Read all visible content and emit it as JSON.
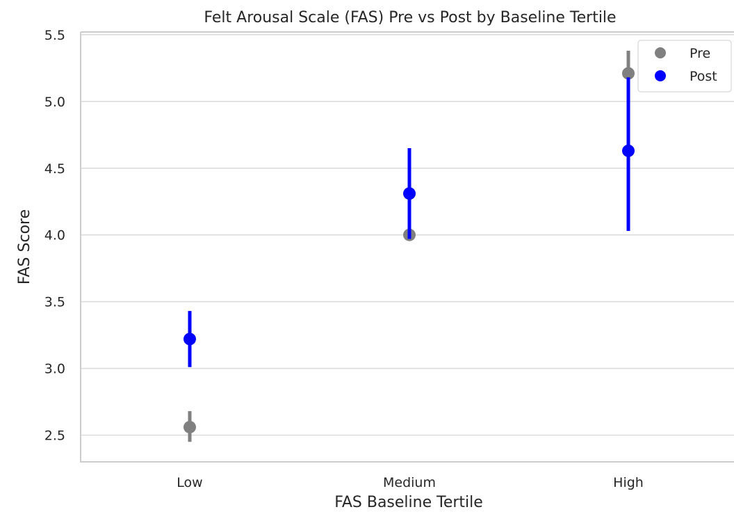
{
  "chart_data": {
    "type": "scatter",
    "title": "Felt Arousal Scale (FAS) Pre vs Post by Baseline Tertile",
    "xlabel": "FAS Baseline Tertile",
    "ylabel": "FAS Score",
    "categories": [
      "Low",
      "Medium",
      "High"
    ],
    "ylim": [
      2.3,
      5.52
    ],
    "yticks": [
      "2.5",
      "3.0",
      "3.5",
      "4.0",
      "4.5",
      "5.0",
      "5.5"
    ],
    "grid": "horizontal",
    "legend_position": "top-right",
    "series": [
      {
        "name": "Pre",
        "color": "#808080",
        "values": [
          2.56,
          4.0,
          5.21
        ],
        "ci_low": [
          2.45,
          4.0,
          4.99
        ],
        "ci_high": [
          2.68,
          4.0,
          5.38
        ]
      },
      {
        "name": "Post",
        "color": "#0000ff",
        "values": [
          3.22,
          4.31,
          4.63
        ],
        "ci_low": [
          3.01,
          3.97,
          4.03
        ],
        "ci_high": [
          3.43,
          4.65,
          5.18
        ]
      }
    ]
  }
}
